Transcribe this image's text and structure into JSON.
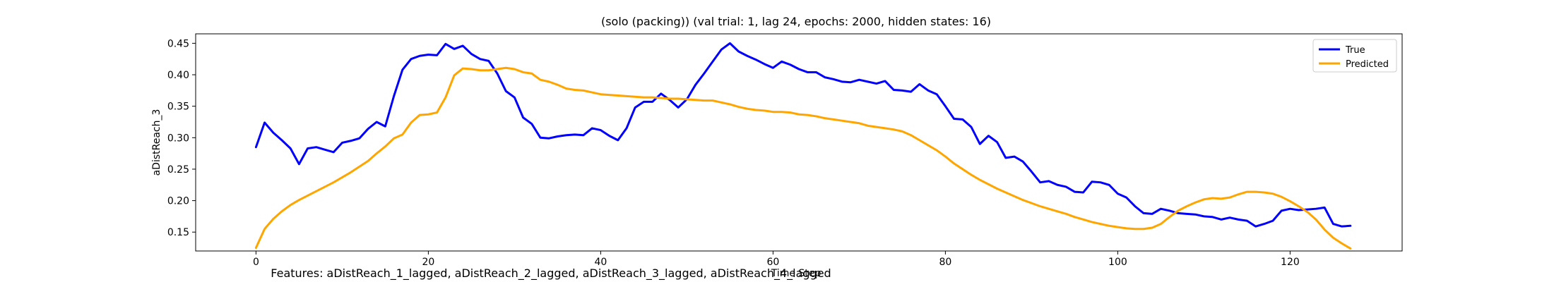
{
  "chart_data": {
    "type": "line",
    "title": "(solo (packing)) (val trial: 1, lag 24, epochs: 2000, hidden states: 16)",
    "xlabel": "Time Step",
    "ylabel": "aDistReach_3",
    "xlim": [
      -7,
      133
    ],
    "ylim": [
      0.12,
      0.465
    ],
    "xticks": [
      0,
      20,
      40,
      60,
      80,
      100,
      120
    ],
    "yticks": [
      0.15,
      0.2,
      0.25,
      0.3,
      0.35,
      0.4,
      0.45
    ],
    "ytick_labels": [
      "0.15",
      "0.20",
      "0.25",
      "0.30",
      "0.35",
      "0.40",
      "0.45"
    ],
    "grid": false,
    "legend_position": "top-right",
    "series": [
      {
        "name": "True",
        "color": "#0000ff",
        "values": [
          0.285,
          0.324,
          0.308,
          0.296,
          0.283,
          0.258,
          0.283,
          0.285,
          0.281,
          0.277,
          0.292,
          0.295,
          0.299,
          0.314,
          0.325,
          0.318,
          0.366,
          0.408,
          0.425,
          0.43,
          0.432,
          0.431,
          0.449,
          0.441,
          0.446,
          0.433,
          0.425,
          0.422,
          0.402,
          0.374,
          0.364,
          0.332,
          0.322,
          0.3,
          0.299,
          0.302,
          0.304,
          0.305,
          0.304,
          0.315,
          0.312,
          0.303,
          0.296,
          0.315,
          0.348,
          0.357,
          0.357,
          0.37,
          0.36,
          0.348,
          0.361,
          0.384,
          0.402,
          0.421,
          0.44,
          0.45,
          0.437,
          0.43,
          0.424,
          0.417,
          0.411,
          0.421,
          0.416,
          0.409,
          0.404,
          0.404,
          0.396,
          0.393,
          0.389,
          0.388,
          0.392,
          0.389,
          0.386,
          0.39,
          0.376,
          0.375,
          0.373,
          0.385,
          0.375,
          0.369,
          0.35,
          0.33,
          0.329,
          0.317,
          0.29,
          0.303,
          0.293,
          0.268,
          0.27,
          0.262,
          0.246,
          0.229,
          0.231,
          0.225,
          0.222,
          0.214,
          0.213,
          0.23,
          0.229,
          0.225,
          0.211,
          0.205,
          0.191,
          0.18,
          0.179,
          0.187,
          0.184,
          0.18,
          0.179,
          0.178,
          0.175,
          0.174,
          0.17,
          0.173,
          0.17,
          0.168,
          0.159,
          0.163,
          0.168,
          0.184,
          0.187,
          0.185,
          0.186,
          0.187,
          0.189,
          0.163,
          0.159,
          0.16
        ]
      },
      {
        "name": "Predicted",
        "color": "#ffa500",
        "values": [
          0.125,
          0.155,
          0.171,
          0.183,
          0.193,
          0.201,
          0.208,
          0.215,
          0.222,
          0.229,
          0.237,
          0.245,
          0.254,
          0.263,
          0.275,
          0.286,
          0.299,
          0.305,
          0.324,
          0.336,
          0.337,
          0.34,
          0.364,
          0.399,
          0.41,
          0.409,
          0.407,
          0.407,
          0.409,
          0.411,
          0.409,
          0.404,
          0.402,
          0.392,
          0.389,
          0.384,
          0.378,
          0.376,
          0.375,
          0.372,
          0.369,
          0.368,
          0.367,
          0.366,
          0.365,
          0.364,
          0.364,
          0.363,
          0.362,
          0.362,
          0.361,
          0.36,
          0.359,
          0.359,
          0.356,
          0.353,
          0.349,
          0.346,
          0.344,
          0.343,
          0.341,
          0.341,
          0.34,
          0.337,
          0.336,
          0.334,
          0.331,
          0.329,
          0.327,
          0.325,
          0.323,
          0.319,
          0.317,
          0.315,
          0.313,
          0.31,
          0.304,
          0.296,
          0.288,
          0.28,
          0.27,
          0.259,
          0.25,
          0.241,
          0.233,
          0.226,
          0.219,
          0.213,
          0.207,
          0.201,
          0.196,
          0.191,
          0.187,
          0.183,
          0.179,
          0.174,
          0.17,
          0.166,
          0.163,
          0.16,
          0.158,
          0.156,
          0.155,
          0.155,
          0.157,
          0.163,
          0.174,
          0.184,
          0.191,
          0.197,
          0.202,
          0.204,
          0.203,
          0.205,
          0.21,
          0.214,
          0.214,
          0.213,
          0.211,
          0.206,
          0.199,
          0.191,
          0.182,
          0.17,
          0.154,
          0.141,
          0.132,
          0.124
        ]
      }
    ],
    "footer": "Features: aDistReach_1_lagged, aDistReach_2_lagged, aDistReach_3_lagged, aDistReach_4_lagged"
  }
}
